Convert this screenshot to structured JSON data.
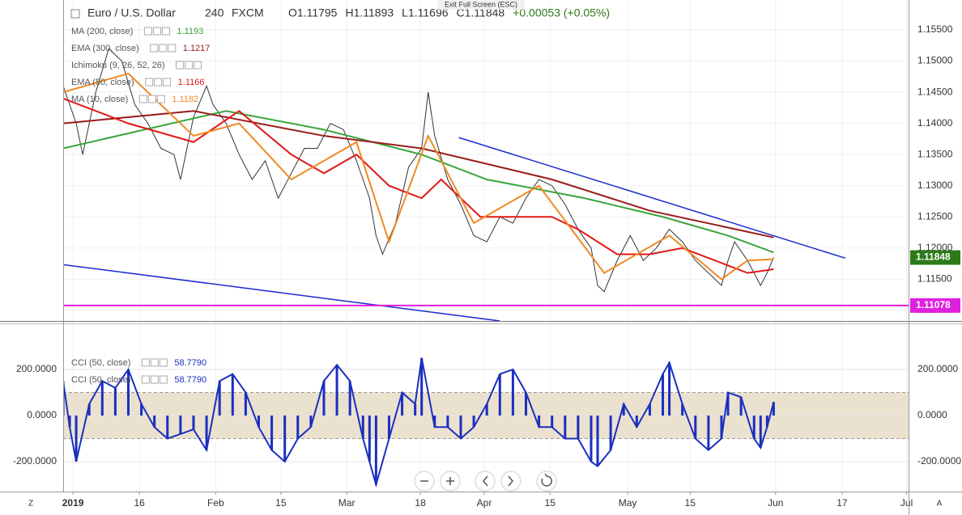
{
  "chart_data": [
    {
      "type": "line",
      "title": "Euro / U.S. Dollar",
      "interval": "240",
      "source": "FXCM",
      "ohlc": [
        "O1.11795",
        "H1.11893",
        "L1.11696",
        "C1.11848"
      ],
      "change": "+0.00053 (+0.05%)",
      "notice": "Exit Full Screen (ESC)",
      "ichimoku": "Ichimoku (9, 26, 52, 26)",
      "color": "#333333",
      "x": [
        0,
        2,
        3,
        5,
        7,
        9,
        11,
        13,
        15,
        17,
        18,
        20,
        22,
        23,
        25,
        27,
        29,
        31,
        33,
        35,
        37,
        39,
        41,
        43,
        45,
        47,
        48,
        49,
        51,
        53,
        55,
        56,
        57,
        59,
        61,
        63,
        65,
        67,
        69,
        71,
        73,
        75,
        77,
        79,
        81,
        82,
        83,
        85,
        87,
        89,
        91,
        93,
        95,
        97,
        99,
        101,
        102,
        103,
        105,
        107,
        108,
        109
      ],
      "values": [
        1.146,
        1.14,
        1.135,
        1.145,
        1.152,
        1.15,
        1.143,
        1.14,
        1.136,
        1.135,
        1.131,
        1.141,
        1.146,
        1.143,
        1.14,
        1.135,
        1.131,
        1.134,
        1.128,
        1.132,
        1.136,
        1.136,
        1.14,
        1.139,
        1.134,
        1.128,
        1.122,
        1.119,
        1.124,
        1.133,
        1.136,
        1.145,
        1.138,
        1.131,
        1.127,
        1.122,
        1.121,
        1.125,
        1.124,
        1.128,
        1.131,
        1.13,
        1.127,
        1.123,
        1.12,
        1.114,
        1.113,
        1.118,
        1.122,
        1.118,
        1.12,
        1.123,
        1.121,
        1.118,
        1.116,
        1.114,
        1.118,
        1.121,
        1.118,
        1.114,
        1.116,
        1.1185
      ],
      "series": [
        {
          "name": "MA (200, close)",
          "color": "#3aa53a",
          "value_label": "1.1193",
          "x": [
            0,
            25,
            40,
            55,
            65,
            80,
            92,
            102,
            109
          ],
          "values": [
            1.136,
            1.142,
            1.139,
            1.135,
            1.131,
            1.128,
            1.125,
            1.122,
            1.1193
          ]
        },
        {
          "name": "EMA (300, close)",
          "color": "#9b1c1c",
          "value_label": "1.1217",
          "x": [
            0,
            20,
            40,
            55,
            75,
            90,
            109
          ],
          "values": [
            1.14,
            1.142,
            1.138,
            1.136,
            1.131,
            1.126,
            1.1217
          ]
        },
        {
          "name": "EMA (50, close)",
          "color": "#e01818",
          "value_label": "1.1166",
          "x": [
            0,
            10,
            20,
            27,
            35,
            40,
            45,
            50,
            55,
            58,
            64,
            75,
            79,
            85,
            90,
            95,
            100,
            105,
            109
          ],
          "values": [
            1.144,
            1.14,
            1.137,
            1.142,
            1.135,
            1.132,
            1.135,
            1.13,
            1.128,
            1.131,
            1.125,
            1.125,
            1.123,
            1.119,
            1.119,
            1.12,
            1.118,
            1.116,
            1.1166
          ]
        },
        {
          "name": "MA (10, close)",
          "color": "#f08a24",
          "value_label": "1.1182",
          "x": [
            0,
            10,
            20,
            27,
            35,
            45,
            50,
            56,
            63,
            73,
            83,
            93,
            101,
            105,
            109
          ],
          "values": [
            1.145,
            1.148,
            1.138,
            1.14,
            1.131,
            1.137,
            1.121,
            1.138,
            1.124,
            1.13,
            1.116,
            1.122,
            1.115,
            1.118,
            1.1182
          ]
        }
      ],
      "trendlines": [
        {
          "color": "#1a2ad0",
          "x": [
            60.7,
            120.0
          ],
          "values": [
            1.13773,
            1.11838
          ]
        },
        {
          "color": "#1a2ad0",
          "x": [
            0,
            67
          ],
          "values": [
            1.11734,
            1.1083
          ]
        }
      ],
      "hline": {
        "value": 1.11078,
        "label": "1.11078",
        "color": "#e020e0"
      },
      "last": {
        "value": 1.11848,
        "label": "1.11848",
        "color": "#2d7a1a"
      },
      "ylim": [
        1.1083,
        1.1598
      ],
      "yticks": [
        {
          "value": 1.155,
          "label": "1.15500"
        },
        {
          "value": 1.15,
          "label": "1.15000"
        },
        {
          "value": 1.145,
          "label": "1.14500"
        },
        {
          "value": 1.14,
          "label": "1.14000"
        },
        {
          "value": 1.135,
          "label": "1.13500"
        },
        {
          "value": 1.13,
          "label": "1.13000"
        },
        {
          "value": 1.125,
          "label": "1.12500"
        },
        {
          "value": 1.12,
          "label": "1.12000"
        },
        {
          "value": 1.115,
          "label": "1.11500"
        },
        {
          "value": 1.11,
          "label": "1.11000"
        }
      ],
      "xlim": [
        0,
        129.7
      ],
      "xticks": [
        {
          "value": 1.5,
          "label": "2019"
        },
        {
          "value": 11.7,
          "label": "16"
        },
        {
          "value": 23.4,
          "label": "Feb"
        },
        {
          "value": 33.4,
          "label": "15"
        },
        {
          "value": 43.5,
          "label": "Mar"
        },
        {
          "value": 54.8,
          "label": "18"
        },
        {
          "value": 64.6,
          "label": "Apr"
        },
        {
          "value": 74.7,
          "label": "15"
        },
        {
          "value": 86.6,
          "label": "May"
        },
        {
          "value": 96.2,
          "label": "15"
        },
        {
          "value": 109.3,
          "label": "Jun"
        },
        {
          "value": 119.5,
          "label": "17"
        },
        {
          "value": 129.4,
          "label": "Jul"
        }
      ],
      "grid": true
    },
    {
      "type": "bar",
      "legend": [
        {
          "name": "CCI (50, close)",
          "value_label": "58.7790"
        },
        {
          "name": "CCI (50, close)",
          "value_label": "58.7790"
        }
      ],
      "color": "#1a2fbf",
      "band": [
        100,
        -100
      ],
      "band_color": "#ebe1cf",
      "x": [
        0,
        1,
        2,
        4,
        6,
        8,
        10,
        12,
        14,
        16,
        18,
        20,
        22,
        24,
        26,
        28,
        30,
        32,
        34,
        36,
        38,
        40,
        42,
        44,
        46,
        47,
        48,
        50,
        52,
        54,
        55,
        57,
        59,
        61,
        63,
        65,
        67,
        69,
        71,
        73,
        75,
        77,
        79,
        81,
        82,
        84,
        86,
        88,
        90,
        92,
        93,
        95,
        97,
        99,
        101,
        102,
        104,
        106,
        107,
        108,
        109
      ],
      "values": [
        150,
        -50,
        -200,
        50,
        150,
        120,
        200,
        50,
        -50,
        -100,
        -80,
        -60,
        -150,
        150,
        180,
        100,
        -50,
        -150,
        -200,
        -100,
        -50,
        150,
        220,
        150,
        -100,
        -200,
        -300,
        -100,
        100,
        50,
        250,
        -50,
        -50,
        -100,
        -50,
        50,
        180,
        200,
        100,
        -50,
        -50,
        -100,
        -100,
        -200,
        -220,
        -150,
        50,
        -50,
        50,
        180,
        230,
        50,
        -100,
        -150,
        -100,
        100,
        80,
        -100,
        -140,
        -50,
        58.779
      ],
      "ylim": [
        -330,
        400
      ],
      "yticks": [
        {
          "value": 200,
          "label": "200.0000"
        },
        {
          "value": 0,
          "label": "0.0000"
        },
        {
          "value": -200,
          "label": "-200.0000"
        }
      ],
      "grid": true
    }
  ],
  "ui": {
    "left": "Z",
    "right": "A"
  }
}
